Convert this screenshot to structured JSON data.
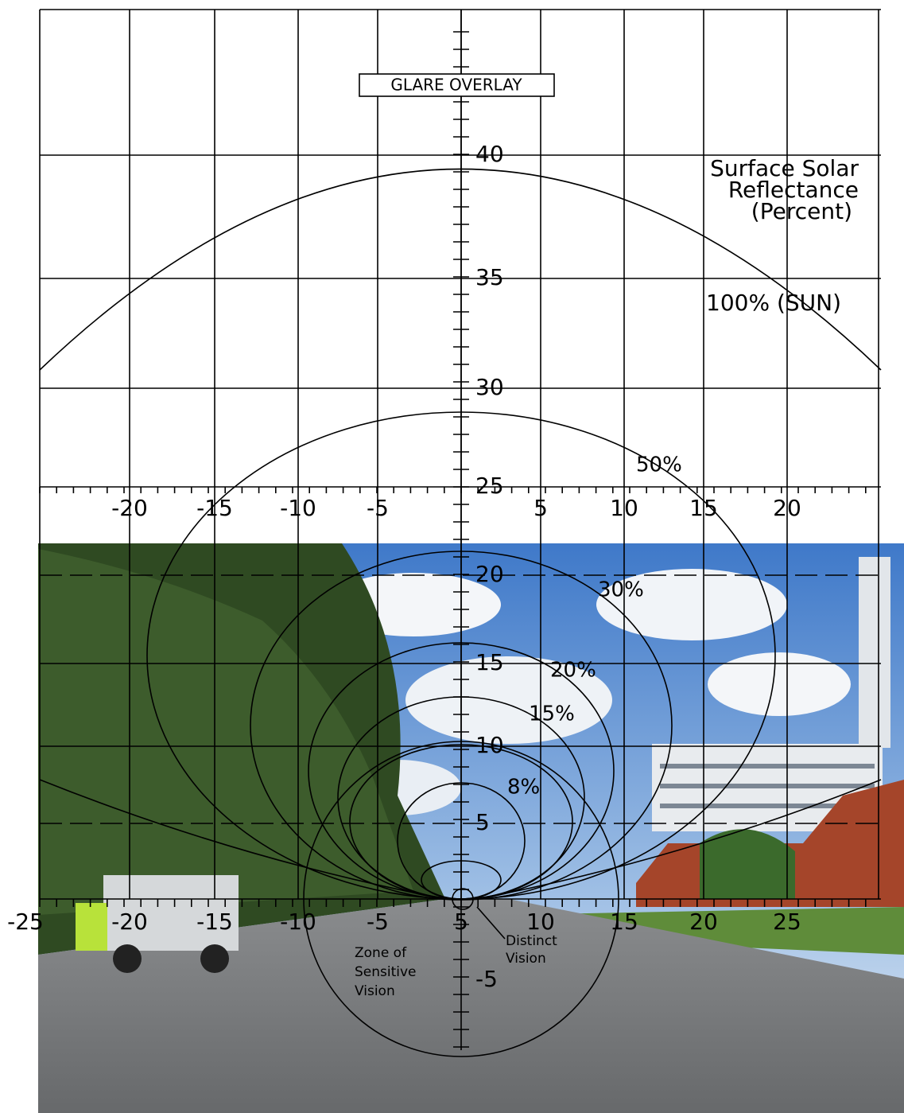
{
  "title": "GLARE OVERLAY",
  "legend_title": [
    "Surface Solar",
    "Reflectance",
    "(Percent)"
  ],
  "upper_axis_labels": [
    "-20",
    "-15",
    "-10",
    "-5",
    "5",
    "10",
    "15",
    "20"
  ],
  "lower_axis_labels": [
    "-25",
    "-20",
    "-15",
    "-10",
    "-5",
    "5",
    "10",
    "15",
    "20",
    "25"
  ],
  "vertical_axis_labels": [
    "40",
    "35",
    "30",
    "25",
    "20",
    "15",
    "10",
    "5",
    "-5"
  ],
  "curve_labels": [
    "100% (SUN)",
    "50%",
    "30%",
    "20%",
    "15%",
    "8%"
  ],
  "zone_labels": {
    "sensitive": [
      "Zone of",
      "Sensitive",
      "Vision"
    ],
    "distinct": [
      "Distinct",
      "Vision"
    ]
  }
}
